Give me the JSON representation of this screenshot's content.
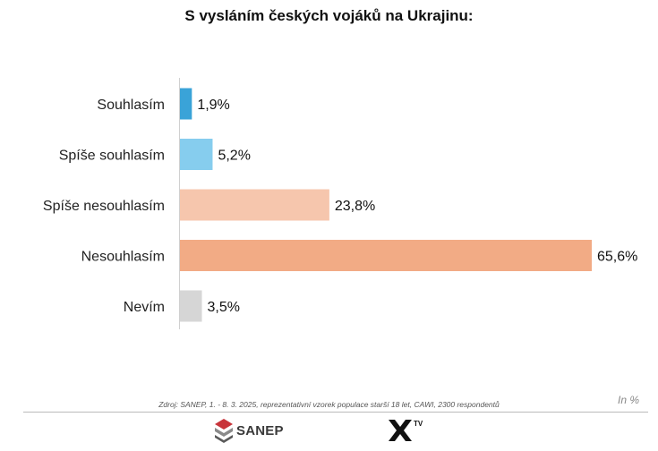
{
  "chart_data": {
    "type": "bar",
    "orientation": "horizontal",
    "title": "S vysláním českých vojáků na Ukrajinu:",
    "categories": [
      "Souhlasím",
      "Spíše souhlasím",
      "Spíše nesouhlasím",
      "Nesouhlasím",
      "Nevím"
    ],
    "values": [
      1.9,
      5.2,
      23.8,
      65.6,
      3.5
    ],
    "value_labels": [
      "1,9%",
      "5,2%",
      "23,8%",
      "65,6%",
      "3,5%"
    ],
    "colors": [
      "#3aa3d8",
      "#86cdee",
      "#f6c6ad",
      "#f2ab85",
      "#d6d6d6"
    ],
    "xlim": [
      0,
      65.6
    ],
    "unit_note": "In %",
    "grid": false,
    "legend": "none"
  },
  "source": "Zdroj: SANEP, 1. - 8. 3. 2025, reprezentativní vzorek populace starší 18 let, CAWI, 2300 respondentů",
  "logos": {
    "sanep": "SANEP",
    "xtv": "TV"
  },
  "icons": {
    "sanep": "sanep-logo-icon",
    "xtv": "x-tv-logo-icon"
  }
}
